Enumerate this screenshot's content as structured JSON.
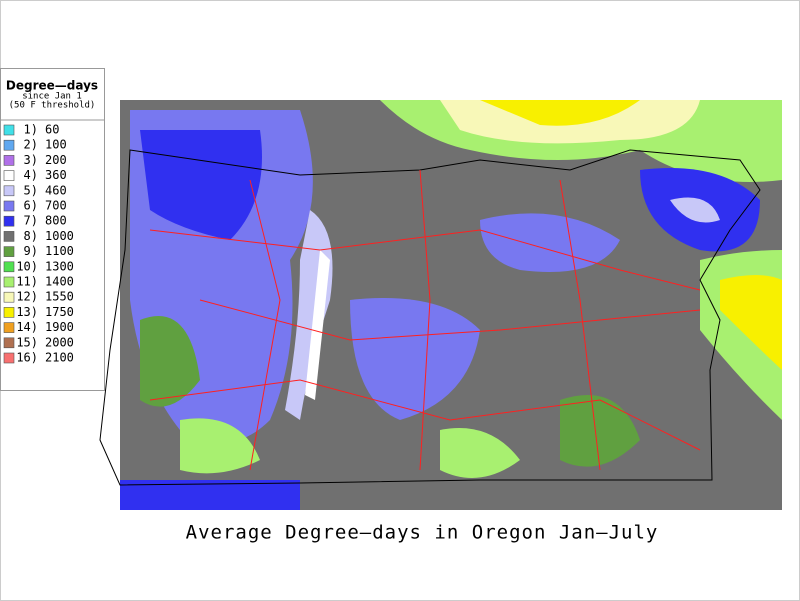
{
  "title": "Average Degree—days in Oregon Jan—July",
  "legend": {
    "title": "Degree—days",
    "subtitle": [
      "since Jan 1",
      "(50 F threshold)"
    ],
    "items": [
      {
        "index": "1)",
        "value": 60,
        "color": "#40e0e8"
      },
      {
        "index": "2)",
        "value": 100,
        "color": "#60a8f0"
      },
      {
        "index": "3)",
        "value": 200,
        "color": "#b070e8"
      },
      {
        "index": "4)",
        "value": 360,
        "color": "#ffffff"
      },
      {
        "index": "5)",
        "value": 460,
        "color": "#c8c8f8"
      },
      {
        "index": "6)",
        "value": 700,
        "color": "#7878f0"
      },
      {
        "index": "7)",
        "value": 800,
        "color": "#3030f0"
      },
      {
        "index": "8)",
        "value": 1000,
        "color": "#707070"
      },
      {
        "index": "9)",
        "value": 1100,
        "color": "#60a040"
      },
      {
        "index": "10)",
        "value": 1300,
        "color": "#50e050"
      },
      {
        "index": "11)",
        "value": 1400,
        "color": "#a8f070"
      },
      {
        "index": "12)",
        "value": 1550,
        "color": "#f8f8b8"
      },
      {
        "index": "13)",
        "value": 1750,
        "color": "#f8f000"
      },
      {
        "index": "14)",
        "value": 1900,
        "color": "#f0a020"
      },
      {
        "index": "15)",
        "value": 2000,
        "color": "#b07050"
      },
      {
        "index": "16)",
        "value": 2100,
        "color": "#f87070"
      }
    ]
  }
}
